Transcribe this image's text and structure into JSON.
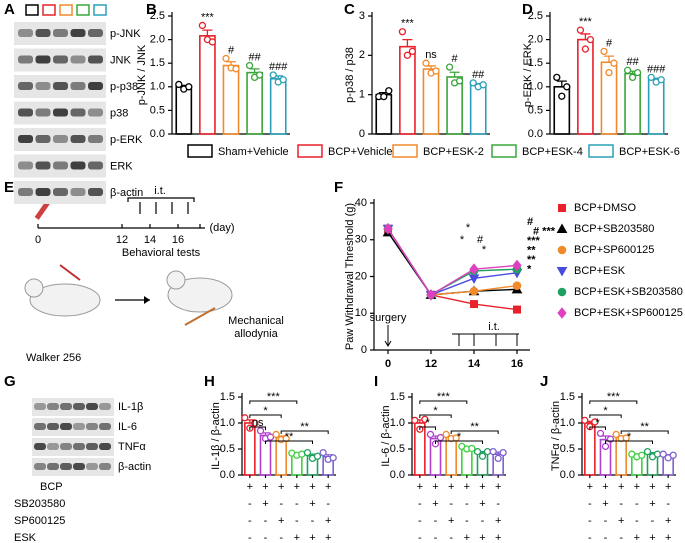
{
  "panel_letters": [
    "A",
    "B",
    "C",
    "D",
    "E",
    "F",
    "G",
    "H",
    "I",
    "J"
  ],
  "blot_a": {
    "labels": [
      "p-JNK",
      "JNK",
      "p-p38",
      "p38",
      "p-ERK",
      "ERK",
      "β-actin"
    ]
  },
  "blot_g": {
    "labels": [
      "IL-1β",
      "IL-6",
      "TNFα",
      "β-actin"
    ]
  },
  "legend": {
    "names": [
      "Sham+Vehicle",
      "BCP+Vehicle",
      "BCP+ESK-2",
      "BCP+ESK-4",
      "BCP+ESK-6"
    ],
    "colors": [
      "#000000",
      "#e8202a",
      "#f08a2c",
      "#3aa53a",
      "#2aa0b8"
    ]
  },
  "diagram_e": {
    "surgery": "surgery",
    "it": "i.t.",
    "days": [
      "0",
      "12",
      "14",
      "16"
    ],
    "unit": "(day)",
    "tests": "Behavioral tests",
    "cells": "Walker 256",
    "outcome": "Mechanical allodynia"
  },
  "treatments": {
    "rows": [
      "BCP",
      "SB203580",
      "SP600125",
      "ESK"
    ],
    "signs": [
      [
        "+",
        "+",
        "+",
        "+",
        "+",
        "+"
      ],
      [
        "-",
        "+",
        "-",
        "-",
        "+",
        "-"
      ],
      [
        "-",
        "-",
        "+",
        "-",
        "-",
        "+"
      ],
      [
        "-",
        "-",
        "-",
        "+",
        "+",
        "+"
      ]
    ]
  },
  "chart_data": [
    {
      "type": "bar",
      "ylabel": "p-JNK / JNK",
      "colors": [
        "#000000",
        "#e8202a",
        "#f08a2c",
        "#3aa53a",
        "#2aa0b8"
      ],
      "values": [
        1.0,
        2.08,
        1.45,
        1.3,
        1.17
      ],
      "errors": [
        0.03,
        0.12,
        0.08,
        0.08,
        0.06
      ],
      "points": [
        [
          1.05,
          0.95,
          1.0
        ],
        [
          2.3,
          2.0,
          1.95
        ],
        [
          1.6,
          1.4,
          1.38
        ],
        [
          1.45,
          1.2,
          1.25
        ],
        [
          1.25,
          1.1,
          1.15
        ]
      ],
      "annotations": [
        null,
        "***",
        "#",
        "##",
        "###"
      ],
      "ylim": [
        0,
        2.5
      ],
      "yticks": [
        {
          "value": 0,
          "label": "0.0"
        },
        {
          "value": 0.5,
          "label": "0.5"
        },
        {
          "value": 1,
          "label": "1.0"
        },
        {
          "value": 1.5,
          "label": "1.5"
        },
        {
          "value": 2,
          "label": "2.0"
        },
        {
          "value": 2.5,
          "label": "2.5"
        }
      ]
    },
    {
      "type": "bar",
      "ylabel": "p-p38 / p38",
      "colors": [
        "#000000",
        "#e8202a",
        "#f08a2c",
        "#3aa53a",
        "#2aa0b8"
      ],
      "values": [
        1.0,
        2.22,
        1.65,
        1.45,
        1.25
      ],
      "errors": [
        0.05,
        0.18,
        0.08,
        0.12,
        0.03
      ],
      "points": [
        [
          0.95,
          0.95,
          1.1
        ],
        [
          2.6,
          2.0,
          2.1
        ],
        [
          1.8,
          1.55,
          1.6
        ],
        [
          1.7,
          1.3,
          1.35
        ],
        [
          1.3,
          1.2,
          1.25
        ]
      ],
      "annotations": [
        null,
        "***",
        "ns",
        "#",
        "##"
      ],
      "ylim": [
        0,
        3
      ],
      "yticks": [
        0,
        1,
        2,
        3
      ]
    },
    {
      "type": "bar",
      "ylabel": "p-ERK / ERK",
      "colors": [
        "#000000",
        "#e8202a",
        "#f08a2c",
        "#3aa53a",
        "#2aa0b8"
      ],
      "values": [
        1.0,
        2.0,
        1.52,
        1.28,
        1.15
      ],
      "errors": [
        0.12,
        0.12,
        0.13,
        0.05,
        0.03
      ],
      "points": [
        [
          1.2,
          0.8,
          1.0
        ],
        [
          2.2,
          1.8,
          2.0
        ],
        [
          1.75,
          1.3,
          1.5
        ],
        [
          1.35,
          1.2,
          1.3
        ],
        [
          1.2,
          1.1,
          1.15
        ]
      ],
      "annotations": [
        null,
        "***",
        "#",
        "##",
        "###"
      ],
      "ylim": [
        0,
        2.5
      ],
      "yticks": [
        {
          "value": 0,
          "label": "0.0"
        },
        {
          "value": 0.5,
          "label": "0.5"
        },
        {
          "value": 1,
          "label": "1.0"
        },
        {
          "value": 1.5,
          "label": "1.5"
        },
        {
          "value": 2,
          "label": "2.0"
        },
        {
          "value": 2.5,
          "label": "2.5"
        }
      ]
    },
    {
      "type": "line",
      "ylabel": "Paw Withdrawal Threshold (g)",
      "categories": [
        "0",
        "12",
        "14",
        "16"
      ],
      "ylim": [
        0,
        40
      ],
      "yticks": [
        0,
        10,
        20,
        30,
        40
      ],
      "surgery": "surgery",
      "it": "i.t.",
      "series": [
        {
          "name": "BCP+DMSO",
          "color": "#e8202a",
          "marker": "square",
          "values": [
            33,
            15,
            12.5,
            11
          ]
        },
        {
          "name": "BCP+SB203580",
          "color": "#000000",
          "marker": "triangle",
          "values": [
            32,
            15,
            16,
            16.5
          ]
        },
        {
          "name": "BCP+SP600125",
          "color": "#f08a2c",
          "marker": "circle",
          "values": [
            33,
            15,
            16,
            17.5
          ]
        },
        {
          "name": "BCP+ESK",
          "color": "#4a4ae0",
          "marker": "triangle-down",
          "values": [
            33,
            15,
            19.5,
            21
          ]
        },
        {
          "name": "BCP+ESK+SB203580",
          "color": "#20a060",
          "marker": "circle",
          "values": [
            33,
            15,
            21.5,
            22
          ]
        },
        {
          "name": "BCP+ESK+SP600125",
          "color": "#e040c0",
          "marker": "diamond",
          "values": [
            33,
            15,
            22,
            23
          ]
        }
      ],
      "annotations_14": [
        {
          "text": "*",
          "color": "#e040c0"
        },
        {
          "text": "*",
          "color": "#20a060"
        },
        {
          "text": "#",
          "color": "#20a060"
        },
        {
          "text": "*",
          "color": "#2020c0"
        }
      ],
      "annotations_16": [
        {
          "text": "#",
          "color": "#e040c0"
        },
        {
          "text": "# ***",
          "color": "#20a040"
        },
        {
          "text": "***",
          "color": "#c040e0"
        },
        {
          "text": "**",
          "color": "#2020c0"
        },
        {
          "text": "**",
          "color": "#f08a2c"
        },
        {
          "text": "*",
          "color": "#000000"
        }
      ]
    },
    {
      "type": "bar",
      "ylabel": "IL-1β / β-actin",
      "colors": [
        "#e8202a",
        "#b040d0",
        "#f08a2c",
        "#40d040",
        "#20a060",
        "#8060d0"
      ],
      "values": [
        1.0,
        0.76,
        0.72,
        0.4,
        0.37,
        0.35
      ],
      "errors": [
        0.06,
        0.05,
        0.03,
        0.01,
        0.03,
        0.04
      ],
      "points": [
        [
          1.1,
          0.9,
          1.0
        ],
        [
          0.85,
          0.7,
          0.73
        ],
        [
          0.78,
          0.68,
          0.7
        ],
        [
          0.42,
          0.38,
          0.4
        ],
        [
          0.43,
          0.32,
          0.36
        ],
        [
          0.43,
          0.3,
          0.33
        ]
      ],
      "brackets": [
        "ns",
        "*",
        "***",
        "**",
        "**"
      ],
      "ylim": [
        0,
        1.5
      ],
      "yticks": [
        {
          "value": 0,
          "label": "0.0"
        },
        {
          "value": 0.5,
          "label": "0.5"
        },
        {
          "value": 1,
          "label": "1.0"
        },
        {
          "value": 1.5,
          "label": "1.5"
        }
      ]
    },
    {
      "type": "bar",
      "ylabel": "IL-6 / β-actin",
      "colors": [
        "#e8202a",
        "#b040d0",
        "#f08a2c",
        "#40d040",
        "#20a060",
        "#8060d0"
      ],
      "values": [
        1.0,
        0.7,
        0.73,
        0.52,
        0.42,
        0.4
      ],
      "errors": [
        0.06,
        0.05,
        0.02,
        0.02,
        0.03,
        0.04
      ],
      "points": [
        [
          1.05,
          0.88,
          1.07
        ],
        [
          0.78,
          0.6,
          0.72
        ],
        [
          0.78,
          0.7,
          0.71
        ],
        [
          0.55,
          0.5,
          0.51
        ],
        [
          0.45,
          0.36,
          0.45
        ],
        [
          0.45,
          0.32,
          0.43
        ]
      ],
      "brackets": [
        "*",
        "*",
        "***",
        "*",
        "**"
      ],
      "ylim": [
        0,
        1.5
      ],
      "yticks": [
        {
          "value": 0,
          "label": "0.0"
        },
        {
          "value": 0.5,
          "label": "0.5"
        },
        {
          "value": 1,
          "label": "1.0"
        },
        {
          "value": 1.5,
          "label": "1.5"
        }
      ]
    },
    {
      "type": "bar",
      "ylabel": "TNFα / β-actin",
      "colors": [
        "#e8202a",
        "#b040d0",
        "#f08a2c",
        "#40d040",
        "#20a060",
        "#8060d0"
      ],
      "values": [
        1.0,
        0.68,
        0.73,
        0.38,
        0.4,
        0.37
      ],
      "errors": [
        0.03,
        0.07,
        0.02,
        0.02,
        0.03,
        0.02
      ],
      "points": [
        [
          1.05,
          0.93,
          1.02
        ],
        [
          0.8,
          0.55,
          0.69
        ],
        [
          0.78,
          0.7,
          0.71
        ],
        [
          0.4,
          0.35,
          0.38
        ],
        [
          0.45,
          0.35,
          0.4
        ],
        [
          0.4,
          0.33,
          0.38
        ]
      ],
      "brackets": [
        "*",
        "*",
        "***",
        "*",
        "**"
      ],
      "ylim": [
        0,
        1.5
      ],
      "yticks": [
        {
          "value": 0,
          "label": "0.0"
        },
        {
          "value": 0.5,
          "label": "0.5"
        },
        {
          "value": 1,
          "label": "1.0"
        },
        {
          "value": 1.5,
          "label": "1.5"
        }
      ]
    }
  ]
}
